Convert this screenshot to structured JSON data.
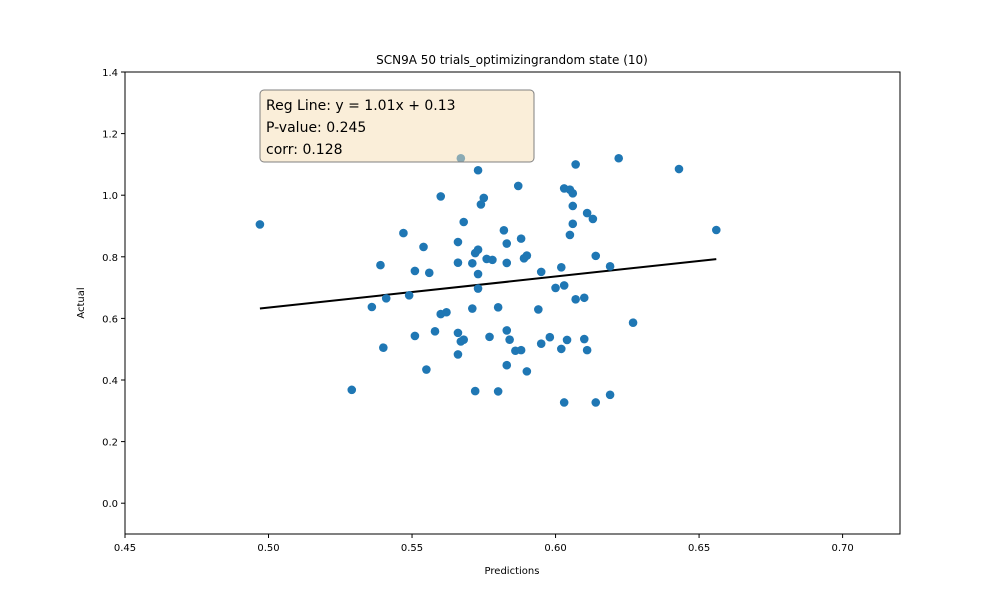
{
  "chart_data": {
    "type": "scatter",
    "title": "SCN9A 50 trials_optimizingrandom state (10)",
    "xlabel": "Predictions",
    "ylabel": "Actual",
    "xlim": [
      0.45,
      0.72
    ],
    "ylim": [
      -0.1,
      1.4
    ],
    "xticks": [
      "0.45",
      "0.50",
      "0.55",
      "0.60",
      "0.65",
      "0.70"
    ],
    "yticks": [
      "0.0",
      "0.2",
      "0.4",
      "0.6",
      "0.8",
      "1.0",
      "1.2",
      "1.4"
    ],
    "point_color": "#1f77b4",
    "regression": {
      "slope": 1.01,
      "intercept": 0.13,
      "x_range": [
        0.497,
        0.656
      ],
      "color": "#000000"
    },
    "annotation": {
      "lines": [
        "Reg Line: y = 1.01x + 0.13",
        "P-value: 0.245",
        "corr: 0.128"
      ],
      "box_fill": "#f5deb3",
      "box_edge": "#808080"
    },
    "points": [
      [
        0.497,
        0.905
      ],
      [
        0.529,
        0.368
      ],
      [
        0.536,
        0.637
      ],
      [
        0.539,
        0.773
      ],
      [
        0.54,
        0.505
      ],
      [
        0.541,
        0.665
      ],
      [
        0.547,
        0.877
      ],
      [
        0.549,
        0.675
      ],
      [
        0.551,
        0.754
      ],
      [
        0.551,
        0.543
      ],
      [
        0.554,
        0.832
      ],
      [
        0.555,
        0.434
      ],
      [
        0.556,
        0.748
      ],
      [
        0.558,
        0.558
      ],
      [
        0.56,
        0.996
      ],
      [
        0.56,
        0.614
      ],
      [
        0.562,
        0.62
      ],
      [
        0.566,
        0.553
      ],
      [
        0.566,
        0.848
      ],
      [
        0.566,
        0.781
      ],
      [
        0.566,
        0.483
      ],
      [
        0.567,
        0.525
      ],
      [
        0.567,
        1.12
      ],
      [
        0.568,
        0.531
      ],
      [
        0.568,
        0.913
      ],
      [
        0.571,
        0.779
      ],
      [
        0.571,
        0.632
      ],
      [
        0.572,
        0.812
      ],
      [
        0.572,
        0.364
      ],
      [
        0.573,
        0.823
      ],
      [
        0.573,
        0.744
      ],
      [
        0.573,
        1.081
      ],
      [
        0.573,
        0.697
      ],
      [
        0.574,
        0.97
      ],
      [
        0.575,
        0.991
      ],
      [
        0.576,
        0.793
      ],
      [
        0.577,
        0.54
      ],
      [
        0.578,
        0.79
      ],
      [
        0.58,
        0.363
      ],
      [
        0.58,
        0.636
      ],
      [
        0.582,
        0.886
      ],
      [
        0.583,
        0.561
      ],
      [
        0.583,
        0.843
      ],
      [
        0.583,
        0.78
      ],
      [
        0.583,
        0.448
      ],
      [
        0.584,
        0.531
      ],
      [
        0.586,
        0.495
      ],
      [
        0.587,
        1.03
      ],
      [
        0.588,
        0.859
      ],
      [
        0.588,
        0.497
      ],
      [
        0.589,
        0.795
      ],
      [
        0.59,
        0.804
      ],
      [
        0.59,
        0.428
      ],
      [
        0.594,
        0.629
      ],
      [
        0.595,
        0.751
      ],
      [
        0.595,
        0.518
      ],
      [
        0.598,
        0.539
      ],
      [
        0.6,
        0.699
      ],
      [
        0.602,
        0.766
      ],
      [
        0.602,
        0.501
      ],
      [
        0.603,
        0.327
      ],
      [
        0.603,
        0.707
      ],
      [
        0.603,
        1.022
      ],
      [
        0.604,
        0.53
      ],
      [
        0.605,
        0.871
      ],
      [
        0.605,
        1.018
      ],
      [
        0.606,
        1.006
      ],
      [
        0.606,
        0.907
      ],
      [
        0.606,
        0.965
      ],
      [
        0.607,
        1.1
      ],
      [
        0.607,
        0.662
      ],
      [
        0.61,
        0.667
      ],
      [
        0.61,
        0.533
      ],
      [
        0.611,
        0.942
      ],
      [
        0.611,
        0.497
      ],
      [
        0.613,
        0.923
      ],
      [
        0.614,
        0.803
      ],
      [
        0.614,
        0.327
      ],
      [
        0.619,
        0.769
      ],
      [
        0.619,
        0.352
      ],
      [
        0.622,
        1.12
      ],
      [
        0.627,
        0.586
      ],
      [
        0.643,
        1.085
      ],
      [
        0.656,
        0.887
      ]
    ]
  }
}
